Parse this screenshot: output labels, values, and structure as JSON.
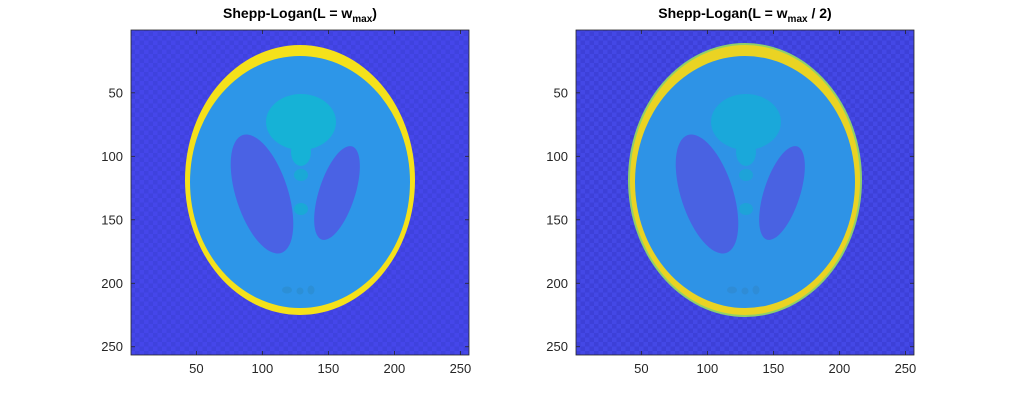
{
  "figure": {
    "background": "#ffffff"
  },
  "chart_data": [
    {
      "type": "heatmap",
      "image": "Shepp-Logan phantom reconstruction",
      "title": {
        "prefix": "Shepp-Logan(L = w",
        "subscript": "max",
        "suffix": ")"
      },
      "xlim": [
        0.5,
        256.5
      ],
      "ylim": [
        0.5,
        256.5
      ],
      "y_direction": "reverse",
      "xticks": [
        50,
        100,
        150,
        200,
        250
      ],
      "yticks": [
        50,
        100,
        150,
        200,
        250
      ],
      "xlabel": "",
      "ylabel": "",
      "grid": false,
      "colormap": "parula",
      "colors": {
        "background": "#4546ea",
        "background_alt": "#3b3dd2",
        "body": "#2d96e8",
        "skull": "#f5e11a",
        "skull_edge": "#c9d23a",
        "upper_blob": "#16b2d6",
        "lateral_ellipses": "#4a62e4",
        "small_dots": "#1aa9d6",
        "tiny_dots": "#2c8fd6"
      }
    },
    {
      "type": "heatmap",
      "image": "Shepp-Logan phantom reconstruction",
      "title": {
        "prefix": "Shepp-Logan(L = w",
        "subscript": "max",
        "suffix": " / 2)"
      },
      "xlim": [
        0.5,
        256.5
      ],
      "ylim": [
        0.5,
        256.5
      ],
      "y_direction": "reverse",
      "xticks": [
        50,
        100,
        150,
        200,
        250
      ],
      "yticks": [
        50,
        100,
        150,
        200,
        250
      ],
      "xlabel": "",
      "ylabel": "",
      "grid": false,
      "colormap": "parula",
      "colors": {
        "background": "#4448e6",
        "background_alt": "#383bcf",
        "body": "#2e93e6",
        "skull": "#ead323",
        "skull_edge": "#8fd06a",
        "upper_blob": "#1aa8da",
        "lateral_ellipses": "#4962e2",
        "small_dots": "#1ea3d8",
        "tiny_dots": "#2f8cd6"
      }
    }
  ]
}
